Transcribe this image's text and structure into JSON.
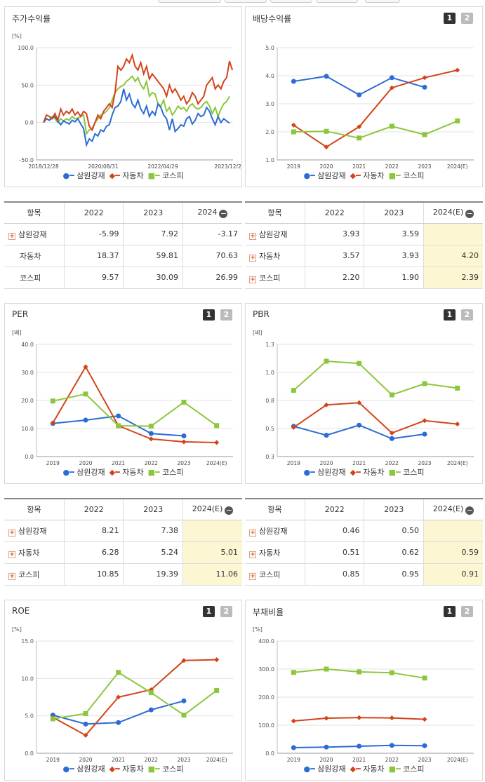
{
  "colors": {
    "samwon": "#2b6cd4",
    "auto": "#d44318",
    "kospi": "#8cc63e"
  },
  "legend": {
    "samwon": "삼원강재",
    "auto": "자동차",
    "kospi": "코스피"
  },
  "pager": {
    "p1": "1",
    "p2": "2"
  },
  "panels": {
    "stock": {
      "title": "주가수익률"
    },
    "div": {
      "title": "배당수익률"
    },
    "per": {
      "title": "PER"
    },
    "pbr": {
      "title": "PBR"
    },
    "roe": {
      "title": "ROE"
    },
    "debt": {
      "title": "부채비율"
    }
  },
  "tables": {
    "stock": {
      "headers": [
        "항목",
        "2022",
        "2023",
        "2024"
      ],
      "rows": [
        {
          "name": "삼원강재",
          "v": [
            "-5.99",
            "7.92",
            "-3.17"
          ]
        },
        {
          "name": "자동차",
          "v": [
            "18.37",
            "59.81",
            "70.63"
          ]
        },
        {
          "name": "코스피",
          "v": [
            "9.57",
            "30.09",
            "26.99"
          ]
        }
      ]
    },
    "div": {
      "headers": [
        "항목",
        "2022",
        "2023",
        "2024(E)"
      ],
      "rows": [
        {
          "name": "삼원강재",
          "v": [
            "3.93",
            "3.59",
            ""
          ]
        },
        {
          "name": "자동차",
          "v": [
            "3.57",
            "3.93",
            "4.20"
          ]
        },
        {
          "name": "코스피",
          "v": [
            "2.20",
            "1.90",
            "2.39"
          ]
        }
      ]
    },
    "per": {
      "headers": [
        "항목",
        "2022",
        "2023",
        "2024(E)"
      ],
      "rows": [
        {
          "name": "삼원강재",
          "v": [
            "8.21",
            "7.38",
            ""
          ]
        },
        {
          "name": "자동차",
          "v": [
            "6.28",
            "5.24",
            "5.01"
          ]
        },
        {
          "name": "코스피",
          "v": [
            "10.85",
            "19.39",
            "11.06"
          ]
        }
      ]
    },
    "pbr": {
      "headers": [
        "항목",
        "2022",
        "2023",
        "2024(E)"
      ],
      "rows": [
        {
          "name": "삼원강재",
          "v": [
            "0.46",
            "0.50",
            ""
          ]
        },
        {
          "name": "자동차",
          "v": [
            "0.51",
            "0.62",
            "0.59"
          ]
        },
        {
          "name": "코스피",
          "v": [
            "0.85",
            "0.95",
            "0.91"
          ]
        }
      ]
    }
  },
  "chart_data": [
    {
      "id": "stock",
      "type": "line",
      "unit": "[%]",
      "x_ticks": [
        "2018/12/28",
        "2020/08/31",
        "2022/04/29",
        "2023/12/28"
      ],
      "ylim": [
        -50,
        100
      ],
      "y_ticks": [
        "100.0",
        "50.0",
        "0.0",
        "-50.0"
      ],
      "series": [
        {
          "name": "삼원강재",
          "values": [
            0,
            5,
            3,
            6,
            8,
            2,
            -3,
            2,
            0,
            -2,
            3,
            1,
            5,
            -2,
            -8,
            -30,
            -22,
            -25,
            -15,
            -18,
            -10,
            -12,
            -5,
            -3,
            10,
            20,
            22,
            28,
            45,
            30,
            38,
            25,
            20,
            30,
            18,
            12,
            22,
            8,
            15,
            10,
            25,
            20,
            10,
            5,
            -10,
            5,
            -12,
            -8,
            -3,
            -5,
            5,
            8,
            -2,
            3,
            12,
            8,
            10,
            20,
            15,
            5,
            -3,
            8,
            0,
            5,
            2,
            -1
          ]
        },
        {
          "name": "자동차",
          "values": [
            0,
            10,
            8,
            5,
            12,
            3,
            18,
            10,
            15,
            12,
            18,
            10,
            14,
            8,
            15,
            12,
            -5,
            -10,
            0,
            10,
            5,
            15,
            20,
            25,
            20,
            40,
            75,
            70,
            75,
            85,
            80,
            90,
            75,
            70,
            80,
            65,
            75,
            58,
            65,
            60,
            55,
            50,
            45,
            35,
            50,
            40,
            45,
            38,
            30,
            35,
            25,
            30,
            40,
            35,
            25,
            30,
            35,
            50,
            55,
            60,
            45,
            50,
            45,
            55,
            60,
            82,
            70
          ]
        },
        {
          "name": "코스피",
          "values": [
            0,
            5,
            3,
            8,
            5,
            0,
            5,
            2,
            5,
            3,
            8,
            5,
            6,
            8,
            10,
            -15,
            -10,
            -8,
            0,
            5,
            10,
            12,
            15,
            20,
            30,
            40,
            45,
            48,
            50,
            55,
            58,
            62,
            55,
            60,
            50,
            45,
            55,
            35,
            40,
            38,
            25,
            22,
            30,
            15,
            20,
            10,
            15,
            22,
            18,
            20,
            15,
            22,
            25,
            20,
            18,
            20,
            25,
            28,
            22,
            12,
            20,
            8,
            18,
            25,
            28,
            35
          ]
        }
      ]
    },
    {
      "id": "div",
      "type": "line",
      "categories": [
        "2019",
        "2020",
        "2021",
        "2022",
        "2023",
        "2024(E)"
      ],
      "ylim": [
        1.0,
        5.0
      ],
      "y_ticks": [
        "5.0",
        "4.0",
        "3.0",
        "2.0",
        "1.0"
      ],
      "series": [
        {
          "name": "삼원강재",
          "values": [
            3.8,
            3.98,
            3.32,
            3.93,
            3.59,
            null
          ]
        },
        {
          "name": "자동차",
          "values": [
            2.24,
            1.46,
            2.18,
            3.57,
            3.93,
            4.2
          ]
        },
        {
          "name": "코스피",
          "values": [
            2.0,
            2.02,
            1.78,
            2.2,
            1.9,
            2.39
          ]
        }
      ]
    },
    {
      "id": "per",
      "type": "line",
      "unit": "[배]",
      "categories": [
        "2019",
        "2020",
        "2021",
        "2022",
        "2023",
        "2024(E)"
      ],
      "ylim": [
        0,
        40
      ],
      "y_ticks": [
        "40.0",
        "30.0",
        "20.0",
        "10.0",
        "0.0"
      ],
      "series": [
        {
          "name": "삼원강재",
          "values": [
            11.8,
            13.0,
            14.5,
            8.21,
            7.38,
            null
          ]
        },
        {
          "name": "자동차",
          "values": [
            12.0,
            32.0,
            11.0,
            6.28,
            5.24,
            5.01
          ]
        },
        {
          "name": "코스피",
          "values": [
            19.8,
            22.3,
            11.0,
            10.85,
            19.39,
            11.06
          ]
        }
      ]
    },
    {
      "id": "pbr",
      "type": "line",
      "unit": "[배]",
      "categories": [
        "2019",
        "2020",
        "2021",
        "2022",
        "2023",
        "2024(E)"
      ],
      "ylim": [
        0.3,
        1.3
      ],
      "y_ticks": [
        "1.3",
        "1.0",
        "0.8",
        "0.5",
        "0.3"
      ],
      "series": [
        {
          "name": "삼원강재",
          "values": [
            0.57,
            0.49,
            0.58,
            0.46,
            0.5,
            null
          ]
        },
        {
          "name": "자동차",
          "values": [
            0.56,
            0.76,
            0.78,
            0.51,
            0.62,
            0.59
          ]
        },
        {
          "name": "코스피",
          "values": [
            0.89,
            1.15,
            1.13,
            0.85,
            0.95,
            0.91
          ]
        }
      ]
    },
    {
      "id": "roe",
      "type": "line",
      "unit": "[%]",
      "categories": [
        "2019",
        "2020",
        "2021",
        "2022",
        "2023",
        "2024(E)"
      ],
      "ylim": [
        0,
        15
      ],
      "y_ticks": [
        "15.0",
        "10.0",
        "5.0",
        "0.0"
      ],
      "series": [
        {
          "name": "삼원강재",
          "values": [
            5.1,
            3.9,
            4.1,
            5.8,
            7.0,
            null
          ]
        },
        {
          "name": "자동차",
          "values": [
            4.8,
            2.4,
            7.5,
            8.5,
            12.4,
            12.5
          ]
        },
        {
          "name": "코스피",
          "values": [
            4.6,
            5.3,
            10.8,
            8.1,
            5.1,
            8.4
          ]
        }
      ]
    },
    {
      "id": "debt",
      "type": "line",
      "unit": "[%]",
      "categories": [
        "2019",
        "2020",
        "2021",
        "2022",
        "2023",
        "2024(E)"
      ],
      "ylim": [
        0,
        400
      ],
      "y_ticks": [
        "400.0",
        "300.0",
        "200.0",
        "100.0",
        "0.0"
      ],
      "series": [
        {
          "name": "삼원강재",
          "values": [
            20,
            22,
            25,
            28,
            27,
            null
          ]
        },
        {
          "name": "자동차",
          "values": [
            115,
            125,
            127,
            126,
            121,
            null
          ]
        },
        {
          "name": "코스피",
          "values": [
            288,
            300,
            290,
            287,
            268,
            null
          ]
        }
      ]
    }
  ]
}
